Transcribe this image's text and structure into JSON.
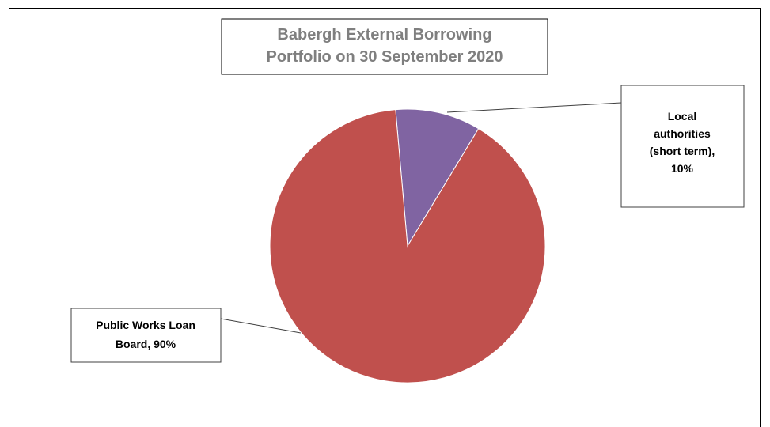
{
  "chart_data": {
    "type": "pie",
    "title_lines": [
      "Babergh External Borrowing",
      "Portfolio on 30 September 2020"
    ],
    "slices": [
      {
        "label_lines": [
          "Local",
          "authorities",
          "(short term),",
          "10%"
        ],
        "category": "Local authorities (short term)",
        "value": 10,
        "color": "#8064a2"
      },
      {
        "label_lines": [
          "Public Works Loan",
          "Board, 90%"
        ],
        "category": "Public Works Loan Board",
        "value": 90,
        "color": "#c0504d"
      }
    ]
  }
}
